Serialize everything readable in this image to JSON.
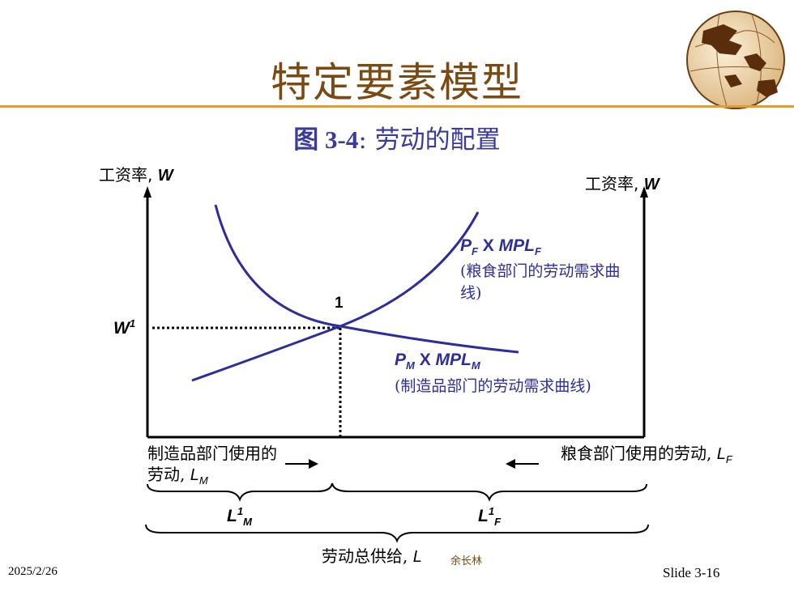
{
  "slide": {
    "title": "特定要素模型",
    "subtitle_fig": "图 3-4",
    "subtitle_rest": ": 劳动的配置",
    "date": "2025/2/26",
    "slide_no": "Slide 3-16",
    "author": "余长林"
  },
  "colors": {
    "title": "#7a4a12",
    "rule": "#e89a2a",
    "curve": "#2e2e9a"
  },
  "diagram": {
    "left_axis": {
      "text": "工资率",
      "var": "W"
    },
    "right_axis": {
      "text": "工资率",
      "var": "W"
    },
    "wage_label": {
      "var": "W",
      "sup": "1"
    },
    "point_label": "1",
    "food_curve": {
      "p": "P",
      "p_sub": "F",
      "x": " X ",
      "mpl": "MPL",
      "mpl_sub": "F",
      "desc": "(粮食部门的劳动需求曲线)"
    },
    "mfg_curve": {
      "p": "P",
      "p_sub": "M",
      "x": " X ",
      "mpl": "MPL",
      "mpl_sub": "M",
      "desc": "(制造品部门的劳动需求曲线)"
    },
    "mfg_labor": {
      "text": "制造品部门使用的劳动, ",
      "var": "L",
      "sub": "M"
    },
    "food_labor": {
      "text": "粮食部门使用的劳动, ",
      "var": "L",
      "sub": "F"
    },
    "l1m": {
      "var": "L",
      "sup": "1",
      "sub": "M"
    },
    "l1f": {
      "var": "L",
      "sup": "1",
      "sub": "F"
    },
    "total": {
      "text": "劳动总供给, ",
      "var": "L"
    }
  }
}
